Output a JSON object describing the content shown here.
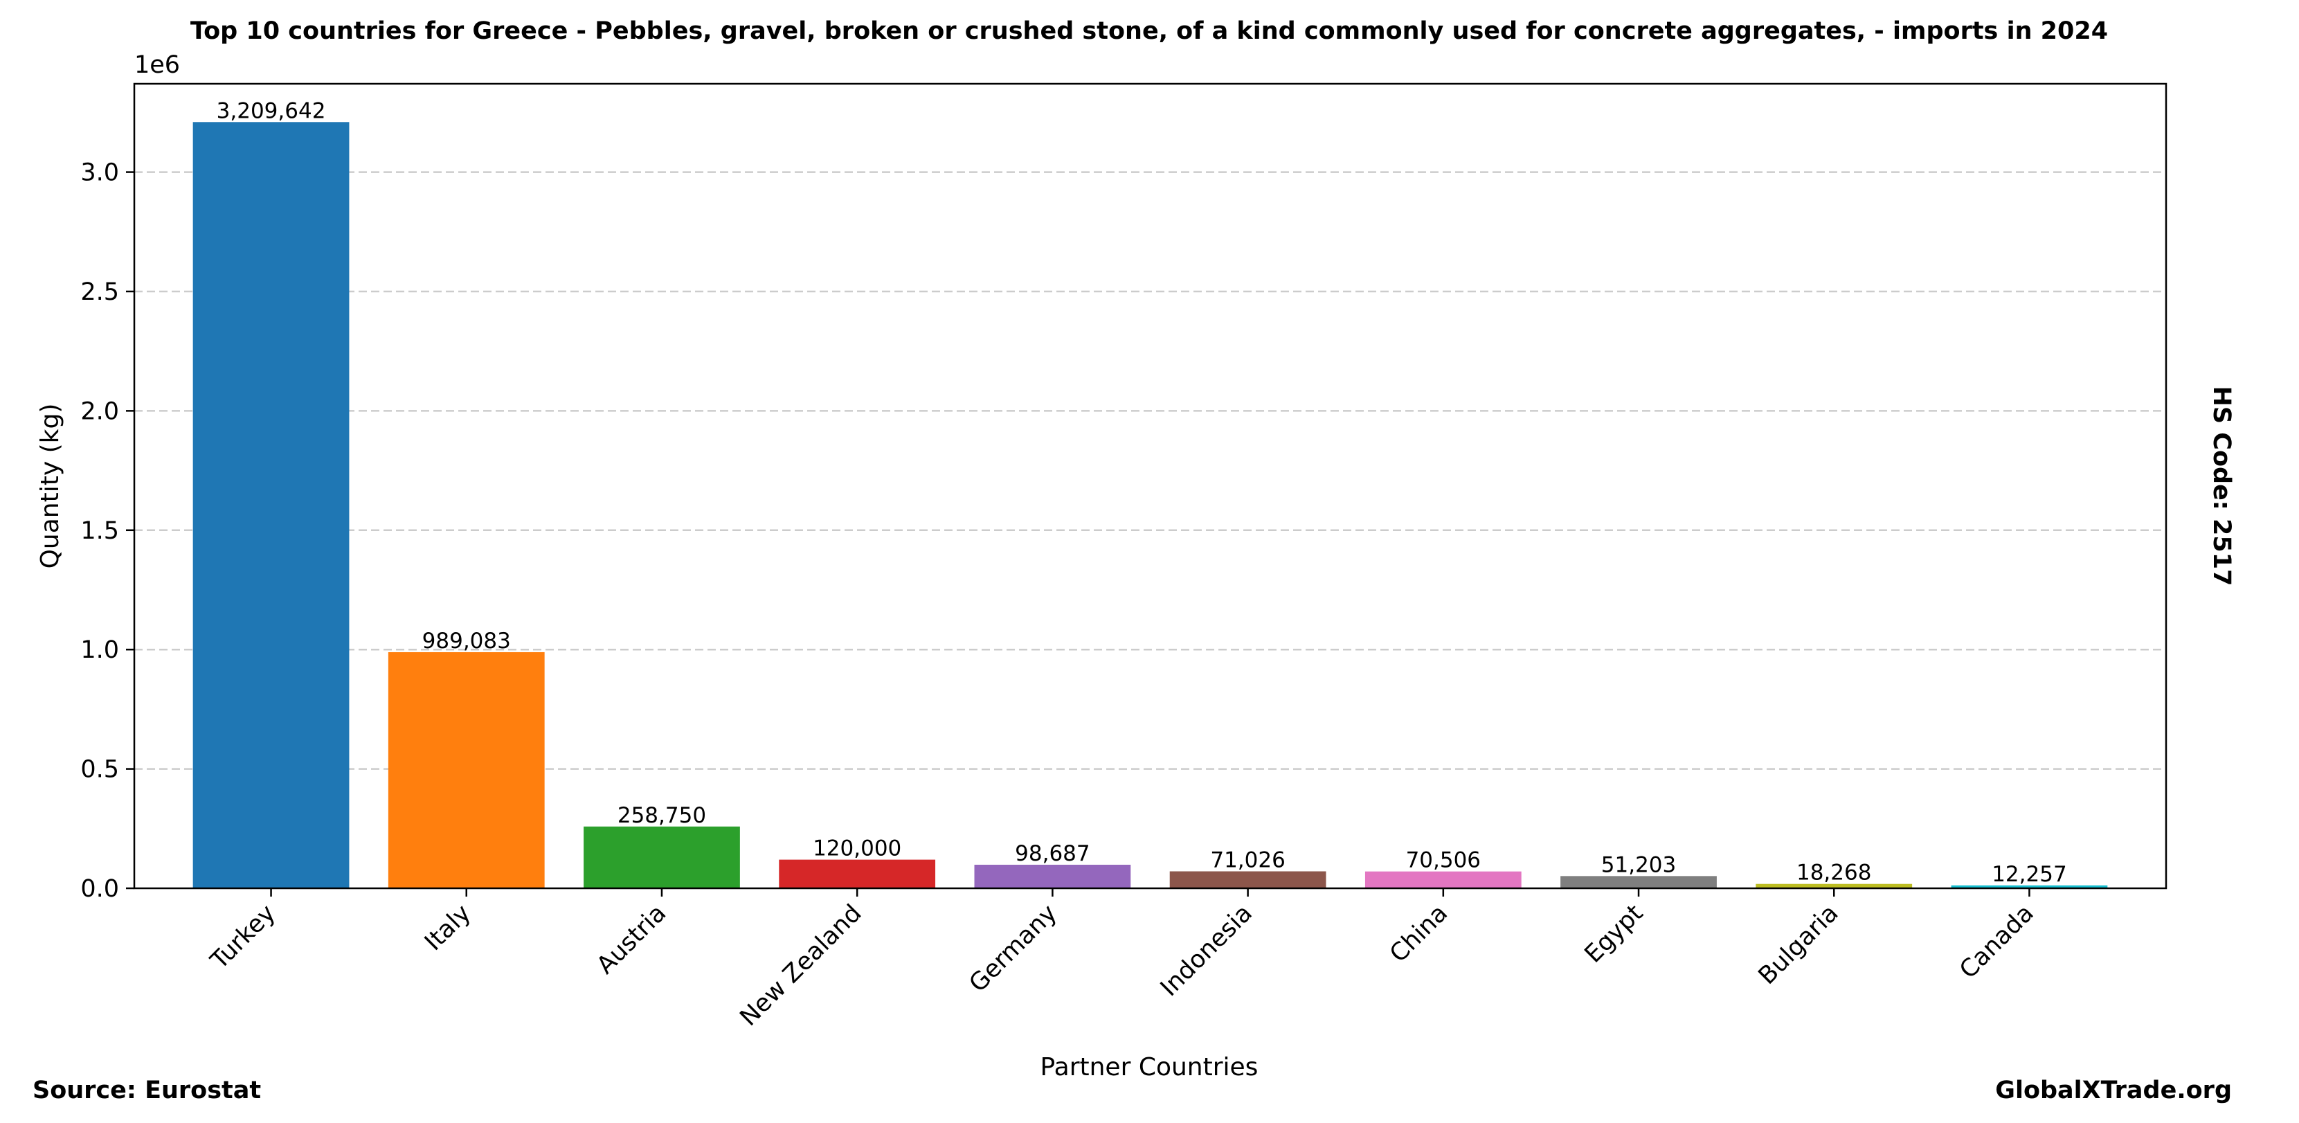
{
  "chart_data": {
    "type": "bar",
    "title": "Top 10 countries for Greece - Pebbles, gravel, broken or crushed stone, of a kind commonly used for concrete aggregates, - imports in 2024",
    "xlabel": "Partner Countries",
    "ylabel": "Quantity (kg)",
    "y_scale_label": "1e6",
    "ylim": [
      0,
      3370000
    ],
    "yticks": [
      0,
      500000,
      1000000,
      1500000,
      2000000,
      2500000,
      3000000
    ],
    "ytick_labels": [
      "0.0",
      "0.5",
      "1.0",
      "1.5",
      "2.0",
      "2.5",
      "3.0"
    ],
    "grid": true,
    "categories": [
      "Turkey",
      "Italy",
      "Austria",
      "New Zealand",
      "Germany",
      "Indonesia",
      "China",
      "Egypt",
      "Bulgaria",
      "Canada"
    ],
    "values": [
      3209642,
      989083,
      258750,
      120000,
      98687,
      71026,
      70506,
      51203,
      18268,
      12257
    ],
    "value_labels": [
      "3,209,642",
      "989,083",
      "258,750",
      "120,000",
      "98,687",
      "71,026",
      "70,506",
      "51,203",
      "18,268",
      "12,257"
    ],
    "colors": [
      "#1f77b4",
      "#ff7f0e",
      "#2ca02c",
      "#d62728",
      "#9467bd",
      "#8c564b",
      "#e377c2",
      "#7f7f7f",
      "#bcbd22",
      "#17becf"
    ]
  },
  "footer": {
    "source": "Source: Eurostat",
    "brand": "GlobalXTrade.org"
  },
  "side_note": "HS Code: 2517"
}
